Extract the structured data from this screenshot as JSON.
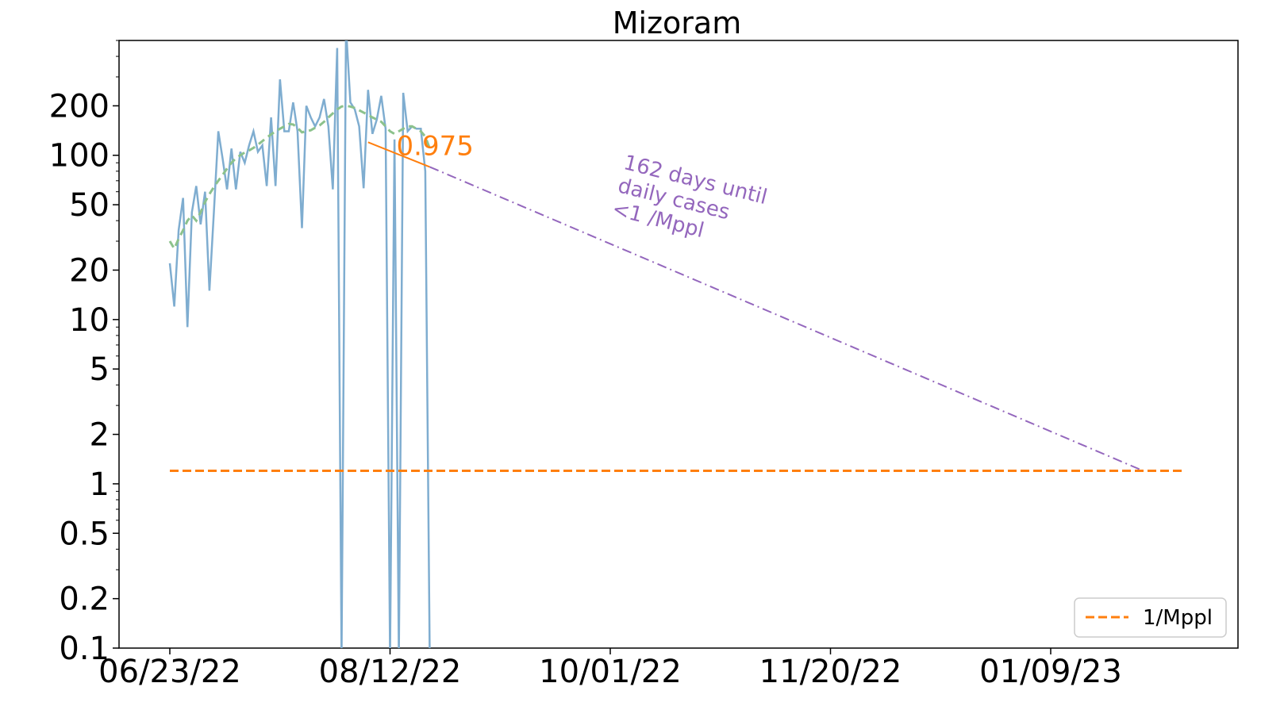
{
  "chart_data": {
    "type": "line",
    "title": "Mizoram",
    "xlabel": "",
    "ylabel": "",
    "x_tick_labels": [
      "06/23/22",
      "08/12/22",
      "10/01/22",
      "11/20/22",
      "01/09/23"
    ],
    "y_scale": "log",
    "ylim": [
      0.1,
      500
    ],
    "y_tick_labels": [
      "0.1",
      "0.2",
      "0.5",
      "1",
      "2",
      "5",
      "10",
      "20",
      "50",
      "100",
      "200"
    ],
    "grid": false,
    "legend_position": "bottom-right",
    "series": [
      {
        "role": "daily",
        "color": "#7fadd0",
        "x": [
          "06/23/22",
          "06/24/22",
          "06/25/22",
          "06/26/22",
          "06/27/22",
          "06/28/22",
          "06/29/22",
          "06/30/22",
          "07/01/22",
          "07/02/22",
          "07/03/22",
          "07/04/22",
          "07/05/22",
          "07/06/22",
          "07/07/22",
          "07/08/22",
          "07/09/22",
          "07/10/22",
          "07/11/22",
          "07/12/22",
          "07/13/22",
          "07/14/22",
          "07/15/22",
          "07/16/22",
          "07/17/22",
          "07/18/22",
          "07/19/22",
          "07/20/22",
          "07/21/22",
          "07/22/22",
          "07/23/22",
          "07/24/22",
          "07/25/22",
          "07/26/22",
          "07/27/22",
          "07/28/22",
          "07/29/22",
          "07/30/22",
          "07/31/22",
          "08/01/22",
          "08/02/22",
          "08/03/22",
          "08/04/22",
          "08/05/22",
          "08/06/22",
          "08/07/22",
          "08/08/22",
          "08/09/22",
          "08/10/22",
          "08/11/22",
          "08/12/22",
          "08/13/22",
          "08/14/22",
          "08/15/22",
          "08/16/22",
          "08/17/22",
          "08/18/22",
          "08/19/22",
          "08/20/22",
          "08/21/22"
        ],
        "y": [
          22,
          12,
          35,
          55,
          9,
          45,
          65,
          38,
          60,
          15,
          45,
          140,
          95,
          62,
          110,
          62,
          105,
          90,
          115,
          140,
          105,
          115,
          65,
          170,
          65,
          290,
          140,
          140,
          210,
          140,
          36,
          200,
          170,
          150,
          170,
          220,
          150,
          62,
          450,
          0.05,
          600,
          210,
          190,
          150,
          63,
          250,
          135,
          165,
          230,
          145,
          0.05,
          125,
          0.05,
          240,
          140,
          150,
          145,
          145,
          80,
          0.05
        ]
      },
      {
        "role": "rolling-average",
        "color": "#8cc28c",
        "x": [
          "06/23/22",
          "06/24/22",
          "06/25/22",
          "06/26/22",
          "06/27/22",
          "06/28/22",
          "06/29/22",
          "06/30/22",
          "07/01/22",
          "07/02/22",
          "07/03/22",
          "07/04/22",
          "07/05/22",
          "07/06/22",
          "07/07/22",
          "07/08/22",
          "07/09/22",
          "07/10/22",
          "07/11/22",
          "07/12/22",
          "07/13/22",
          "07/14/22",
          "07/15/22",
          "07/16/22",
          "07/17/22",
          "07/18/22",
          "07/19/22",
          "07/20/22",
          "07/21/22",
          "07/22/22",
          "07/23/22",
          "07/24/22",
          "07/25/22",
          "07/26/22",
          "07/27/22",
          "07/28/22",
          "07/29/22",
          "07/30/22",
          "07/31/22",
          "08/01/22",
          "08/02/22",
          "08/03/22",
          "08/04/22",
          "08/05/22",
          "08/06/22",
          "08/07/22",
          "08/08/22",
          "08/09/22",
          "08/10/22",
          "08/11/22",
          "08/12/22",
          "08/13/22",
          "08/14/22",
          "08/15/22",
          "08/16/22",
          "08/17/22",
          "08/18/22",
          "08/19/22",
          "08/20/22",
          "08/21/22"
        ],
        "y": [
          30,
          27,
          31,
          35,
          40,
          43,
          40,
          45,
          52,
          58,
          64,
          70,
          76,
          83,
          90,
          96,
          100,
          104,
          107,
          111,
          116,
          122,
          128,
          134,
          140,
          145,
          150,
          155,
          154,
          147,
          138,
          140,
          142,
          147,
          152,
          160,
          170,
          180,
          190,
          198,
          200,
          198,
          194,
          188,
          182,
          176,
          170,
          165,
          160,
          150,
          140,
          135,
          140,
          145,
          150,
          150,
          145,
          140,
          130,
          110
        ]
      },
      {
        "role": "trend-fit",
        "color": "#ff7f0e",
        "x": [
          "08/07/22",
          "08/21/22"
        ],
        "y": [
          120,
          85
        ]
      },
      {
        "role": "projection",
        "color": "#9467bd",
        "x": [
          "08/21/22",
          "01/30/23"
        ],
        "y": [
          85,
          1.2
        ]
      },
      {
        "name": "1/Mppl",
        "role": "threshold",
        "color": "#ff7f0e",
        "x": [
          "06/23/22",
          "02/08/23"
        ],
        "y": [
          1.2,
          1.2
        ]
      }
    ],
    "annotations": [
      {
        "text": "0.975",
        "color": "#ff7f0e",
        "x": "08/12/22",
        "y": 105
      },
      {
        "text_lines": [
          "162 days until",
          "daily cases",
          "<1 /Mppl"
        ],
        "color": "#9467bd",
        "x": "10/02/22",
        "y": 45
      }
    ]
  }
}
